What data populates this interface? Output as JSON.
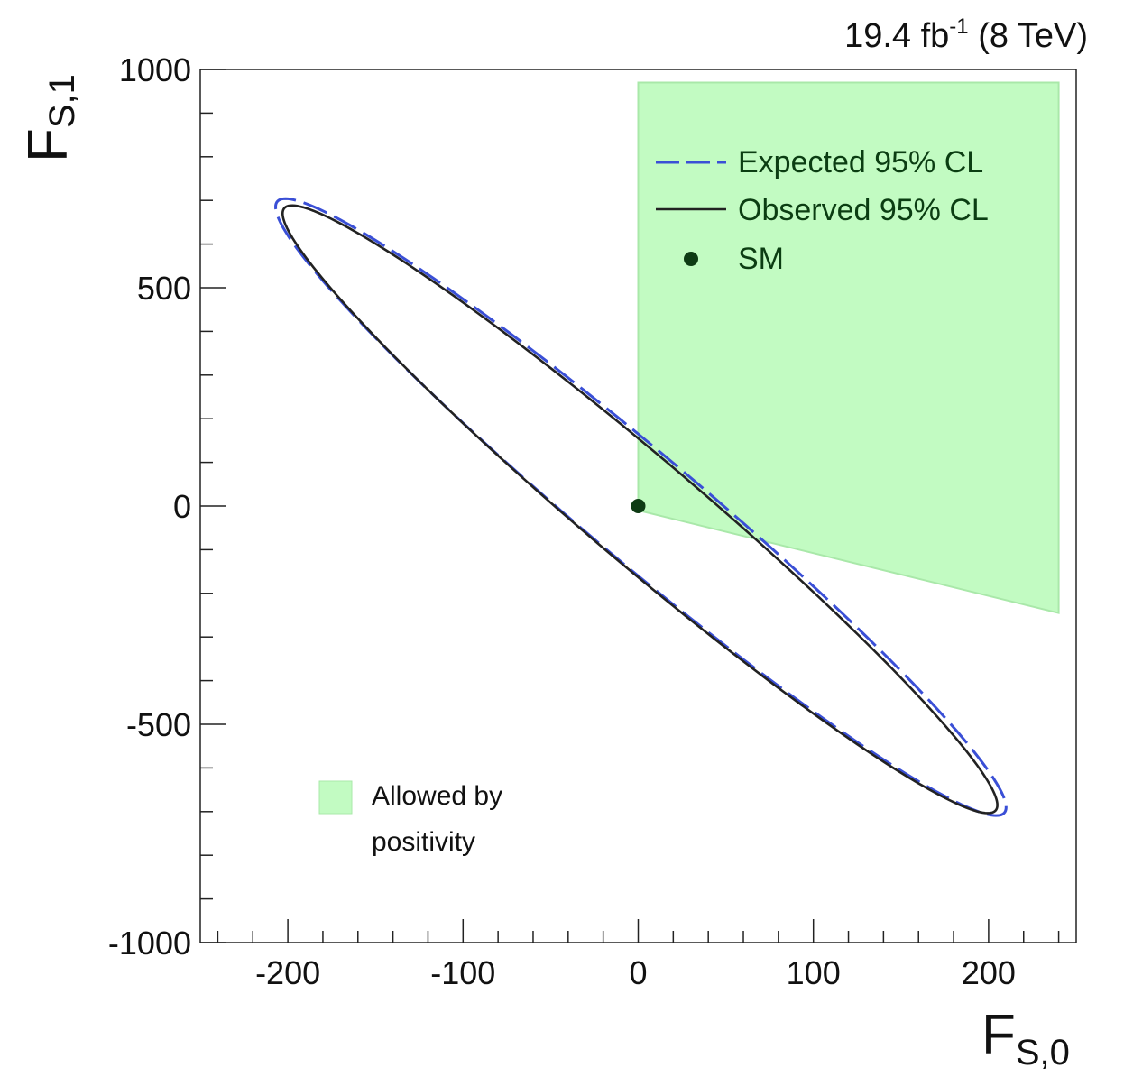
{
  "chart_data": {
    "type": "scatter",
    "luminosity_label": {
      "value": "19.4 fb",
      "superscript": "-1",
      "suffix": " (8 TeV)"
    },
    "xlabel": {
      "main": "F",
      "sub": "S,0"
    },
    "ylabel": {
      "main": "F",
      "sub": "S,1"
    },
    "xlim": [
      -250,
      250
    ],
    "ylim": [
      -1000,
      1000
    ],
    "x_major_ticks": [
      -200,
      -100,
      0,
      100,
      200
    ],
    "x_tick_labels": [
      "-200",
      "-100",
      "0",
      "100",
      "200"
    ],
    "y_major_ticks": [
      -1000,
      -500,
      0,
      500,
      1000
    ],
    "y_tick_labels": [
      "-1000",
      "-500",
      "0",
      "500",
      "1000"
    ],
    "x_minor_step": 20,
    "y_minor_step": 100,
    "series": [
      {
        "name": "Expected 95% CL",
        "style": "dashed",
        "color": "#3a4fd6",
        "shape": "ellipse",
        "center": [
          0,
          0
        ],
        "tips": [
          [
            -207,
            685
          ],
          [
            210,
            -690
          ]
        ],
        "y_intercepts": [
          165,
          -165
        ]
      },
      {
        "name": "Observed 95% CL",
        "style": "solid",
        "color": "#222222",
        "shape": "ellipse",
        "center": [
          0,
          0
        ],
        "tips": [
          [
            -203,
            670
          ],
          [
            205,
            -685
          ]
        ],
        "y_intercepts": [
          155,
          -155
        ]
      },
      {
        "name": "SM",
        "style": "marker",
        "color": "#0e3b14",
        "points": [
          [
            0,
            0
          ]
        ]
      }
    ],
    "region": {
      "name": "Allowed by positivity",
      "color": "#c2fbc2",
      "edge_color": "#a9e8a9",
      "polygon": [
        [
          0,
          970
        ],
        [
          240,
          970
        ],
        [
          240,
          -245
        ],
        [
          0,
          -10
        ]
      ]
    },
    "legend": {
      "placement": "top-right",
      "entries": [
        "Expected 95% CL",
        "Observed 95% CL",
        "SM"
      ]
    },
    "region_legend": {
      "placement": "bottom-left",
      "lines": [
        "Allowed by",
        "positivity"
      ]
    }
  }
}
